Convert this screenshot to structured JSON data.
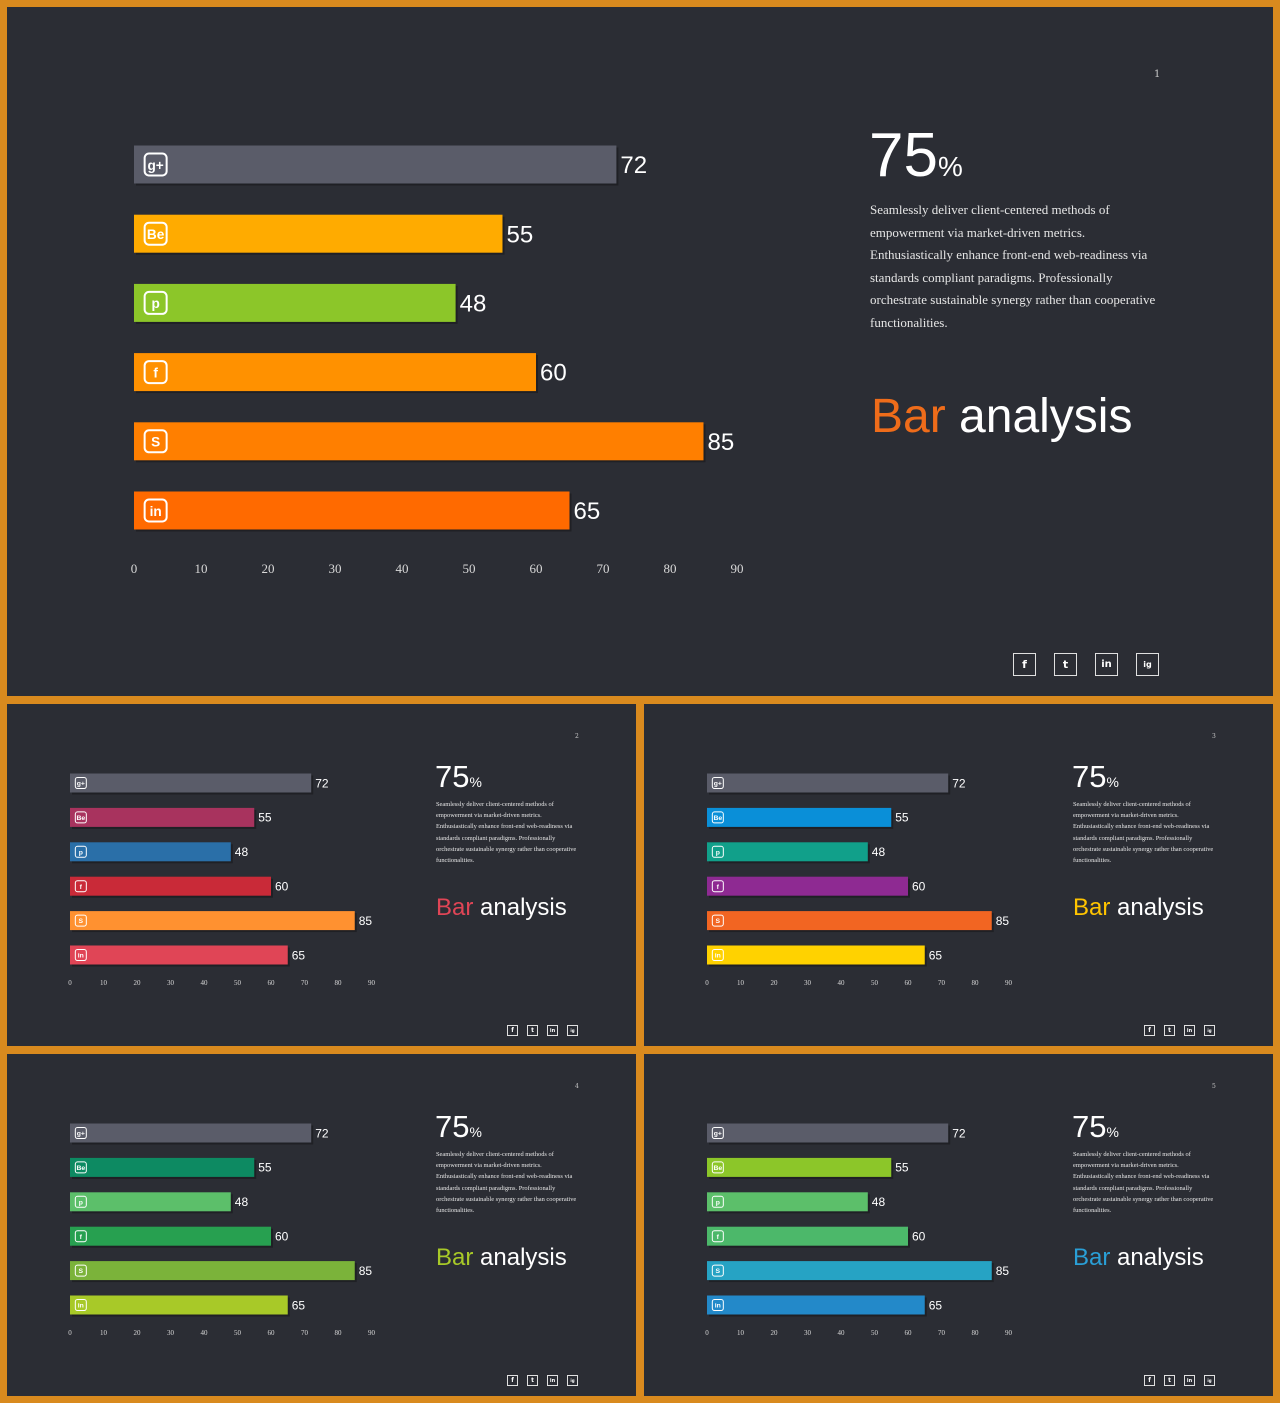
{
  "chart_data": [
    {
      "type": "bar",
      "orientation": "horizontal",
      "page_number": "1",
      "categories": [
        "google-plus",
        "behance",
        "pinterest",
        "facebook",
        "skype",
        "linkedin"
      ],
      "values": [
        72,
        55,
        48,
        60,
        85,
        65
      ],
      "colors": [
        "#5a5c69",
        "#ffab00",
        "#8cc629",
        "#ff9100",
        "#ff7f00",
        "#ff6a00"
      ],
      "ticks": [
        "0",
        "10",
        "20",
        "30",
        "40",
        "50",
        "60",
        "70",
        "80",
        "90"
      ],
      "xlim": [
        0,
        90
      ],
      "stat": "75",
      "stat_unit": "%",
      "description": "Seamlessly deliver client-centered methods of empowerment via market-driven metrics. Enthusiastically enhance front-end web-readiness via standards compliant paradigms. Professionally orchestrate sustainable synergy rather than cooperative functionalities.",
      "heading_accent": "Bar",
      "heading_rest": "analysis",
      "heading_accent_color": "#ef6c1a",
      "socials": [
        "f",
        "t",
        "in",
        "ig"
      ]
    },
    {
      "type": "bar",
      "orientation": "horizontal",
      "page_number": "2",
      "categories": [
        "google-plus",
        "behance",
        "pinterest",
        "facebook",
        "skype",
        "linkedin"
      ],
      "values": [
        72,
        55,
        48,
        60,
        85,
        65
      ],
      "colors": [
        "#5a5c69",
        "#a8335e",
        "#2a6fa8",
        "#c92a38",
        "#ff9130",
        "#e04556"
      ],
      "ticks": [
        "0",
        "10",
        "20",
        "30",
        "40",
        "50",
        "60",
        "70",
        "80",
        "90"
      ],
      "xlim": [
        0,
        90
      ],
      "stat": "75",
      "stat_unit": "%",
      "description": "Seamlessly deliver client-centered methods of empowerment via market-driven metrics. Enthusiastically enhance front-end web-readiness via standards compliant paradigms. Professionally orchestrate sustainable synergy rather than cooperative functionalities.",
      "heading_accent": "Bar",
      "heading_rest": "analysis",
      "heading_accent_color": "#e04556",
      "socials": [
        "f",
        "t",
        "in",
        "ig"
      ]
    },
    {
      "type": "bar",
      "orientation": "horizontal",
      "page_number": "3",
      "categories": [
        "google-plus",
        "behance",
        "pinterest",
        "facebook",
        "skype",
        "linkedin"
      ],
      "values": [
        72,
        55,
        48,
        60,
        85,
        65
      ],
      "colors": [
        "#5a5c69",
        "#0a8fd8",
        "#11a08a",
        "#8e2a92",
        "#f26522",
        "#ffd200"
      ],
      "ticks": [
        "0",
        "10",
        "20",
        "30",
        "40",
        "50",
        "60",
        "70",
        "80",
        "90"
      ],
      "xlim": [
        0,
        90
      ],
      "stat": "75",
      "stat_unit": "%",
      "description": "Seamlessly deliver client-centered methods of empowerment via market-driven metrics. Enthusiastically enhance front-end web-readiness via standards compliant paradigms. Professionally orchestrate sustainable synergy rather than cooperative functionalities.",
      "heading_accent": "Bar",
      "heading_rest": "analysis",
      "heading_accent_color": "#ffc400",
      "socials": [
        "f",
        "t",
        "in",
        "ig"
      ]
    },
    {
      "type": "bar",
      "orientation": "horizontal",
      "page_number": "4",
      "categories": [
        "google-plus",
        "behance",
        "pinterest",
        "facebook",
        "skype",
        "linkedin"
      ],
      "values": [
        72,
        55,
        48,
        60,
        85,
        65
      ],
      "colors": [
        "#5a5c69",
        "#0d8a62",
        "#5cbf6a",
        "#27a050",
        "#7bb33a",
        "#a8c928"
      ],
      "ticks": [
        "0",
        "10",
        "20",
        "30",
        "40",
        "50",
        "60",
        "70",
        "80",
        "90"
      ],
      "xlim": [
        0,
        90
      ],
      "stat": "75",
      "stat_unit": "%",
      "description": "Seamlessly deliver client-centered methods of empowerment via market-driven metrics. Enthusiastically enhance front-end web-readiness via standards compliant paradigms. Professionally orchestrate sustainable synergy rather than cooperative functionalities.",
      "heading_accent": "Bar",
      "heading_rest": "analysis",
      "heading_accent_color": "#a8c928",
      "socials": [
        "f",
        "t",
        "in",
        "ig"
      ]
    },
    {
      "type": "bar",
      "orientation": "horizontal",
      "page_number": "5",
      "categories": [
        "google-plus",
        "behance",
        "pinterest",
        "facebook",
        "skype",
        "linkedin"
      ],
      "values": [
        72,
        55,
        48,
        60,
        85,
        65
      ],
      "colors": [
        "#5a5c69",
        "#8cc629",
        "#5cbf6a",
        "#4cb86a",
        "#26a3c4",
        "#2389c9"
      ],
      "ticks": [
        "0",
        "10",
        "20",
        "30",
        "40",
        "50",
        "60",
        "70",
        "80",
        "90"
      ],
      "xlim": [
        0,
        90
      ],
      "stat": "75",
      "stat_unit": "%",
      "description": "Seamlessly deliver client-centered methods of empowerment via market-driven metrics. Enthusiastically enhance front-end web-readiness via standards compliant paradigms. Professionally orchestrate sustainable synergy rather than cooperative functionalities.",
      "heading_accent": "Bar",
      "heading_rest": "analysis",
      "heading_accent_color": "#2a9fd6",
      "socials": [
        "f",
        "t",
        "in",
        "ig"
      ]
    }
  ]
}
